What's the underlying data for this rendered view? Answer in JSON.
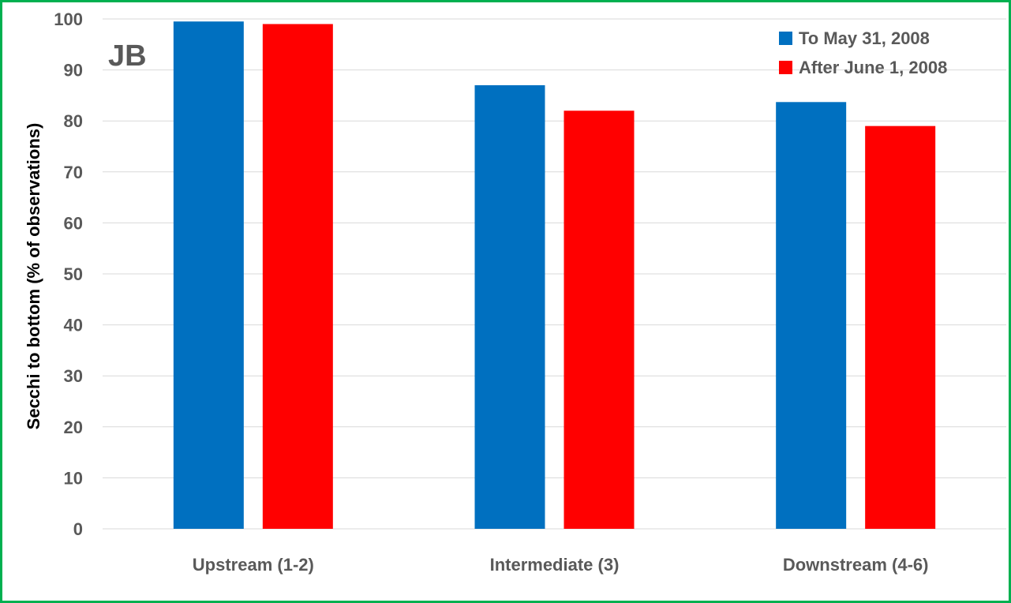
{
  "chart_data": {
    "type": "bar",
    "categories": [
      "Upstream (1-2)",
      "Intermediate (3)",
      "Downstream (4-6)"
    ],
    "series": [
      {
        "name": "To May 31, 2008",
        "values": [
          99.5,
          87,
          83.7
        ],
        "color": "#0070c0"
      },
      {
        "name": "After June 1, 2008",
        "values": [
          99,
          82,
          79
        ],
        "color": "#ff0000"
      }
    ],
    "ylabel": "Secchi to bottom (% of observations)",
    "xlabel": "",
    "annotation": "JB",
    "ylim": [
      0,
      100
    ],
    "yticks": [
      0,
      10,
      20,
      30,
      40,
      50,
      60,
      70,
      80,
      90,
      100
    ],
    "grid": true,
    "legend_position": "top-right",
    "frame_color": "#00b050"
  }
}
